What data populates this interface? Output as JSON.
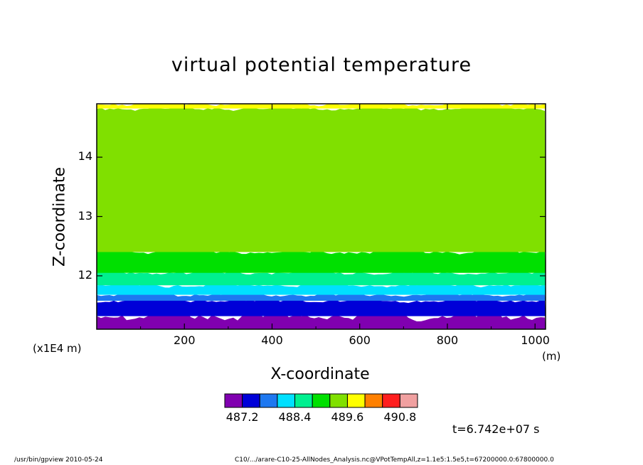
{
  "chart_data": {
    "type": "heatmap",
    "title": "virtual potential temperature",
    "xlabel": "X-coordinate",
    "ylabel": "Z-coordinate",
    "x_unit": "(m)",
    "y_scale_label": "(x1E4 m)",
    "xlim": [
      0,
      1024
    ],
    "ylim": [
      11.1,
      14.9
    ],
    "x_ticks": [
      200,
      400,
      600,
      800,
      1000
    ],
    "y_ticks": [
      12,
      13,
      14
    ],
    "contour_levels": [
      487.2,
      487.8,
      488.4,
      489.0,
      489.6,
      490.2,
      490.8
    ],
    "colorbar": {
      "colors": [
        "#8000b0",
        "#0000d8",
        "#1e78f0",
        "#00e0ff",
        "#00f090",
        "#00e000",
        "#80e000",
        "#ffff00",
        "#ff8000",
        "#ff1e1e",
        "#f0a0a0"
      ],
      "labels": [
        "487.2",
        "488.4",
        "489.6",
        "490.8"
      ]
    },
    "bands": [
      {
        "color": "#8000b0",
        "base": 11.1,
        "top": 11.32
      },
      {
        "color": "#0000d8",
        "base": 11.32,
        "top": 11.58
      },
      {
        "color": "#1e78f0",
        "base": 11.58,
        "top": 11.68
      },
      {
        "color": "#00e0ff",
        "base": 11.68,
        "top": 11.84
      },
      {
        "color": "#00f090",
        "base": 11.84,
        "top": 12.05
      },
      {
        "color": "#00e000",
        "base": 12.05,
        "top": 12.4
      },
      {
        "color": "#80e000",
        "base": 12.4,
        "top": 14.82
      },
      {
        "color": "#ffff00",
        "base": 14.82,
        "top": 14.9
      }
    ]
  },
  "time_label": "t=6.742e+07 s",
  "footer": {
    "left": "/usr/bin/gpview   2010-05-24",
    "right": "C10/.../arare-C10-25-AllNodes_Analysis.nc@VPotTempAll,z=1.1e5:1.5e5,t=67200000.0:67800000.0"
  }
}
